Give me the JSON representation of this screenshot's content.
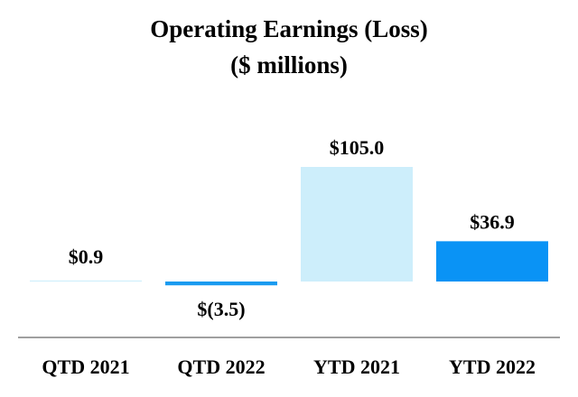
{
  "chart_data": {
    "type": "bar",
    "title": "Operating Earnings (Loss)",
    "subtitle": "($ millions)",
    "categories": [
      "QTD 2021",
      "QTD 2022",
      "YTD 2021",
      "YTD 2022"
    ],
    "values": [
      0.9,
      -3.5,
      105.0,
      36.9
    ],
    "data_labels": [
      "$0.9",
      "$(3.5)",
      "$105.0",
      "$36.9"
    ],
    "colors": [
      "#cdeefb",
      "#1a9bf0",
      "#cdeefb",
      "#0a93f5"
    ],
    "xlabel": "",
    "ylabel": "",
    "ylim": [
      -5,
      110
    ],
    "grid": false,
    "legend": "none"
  },
  "colors": {
    "axis": "#a0a0a0"
  }
}
